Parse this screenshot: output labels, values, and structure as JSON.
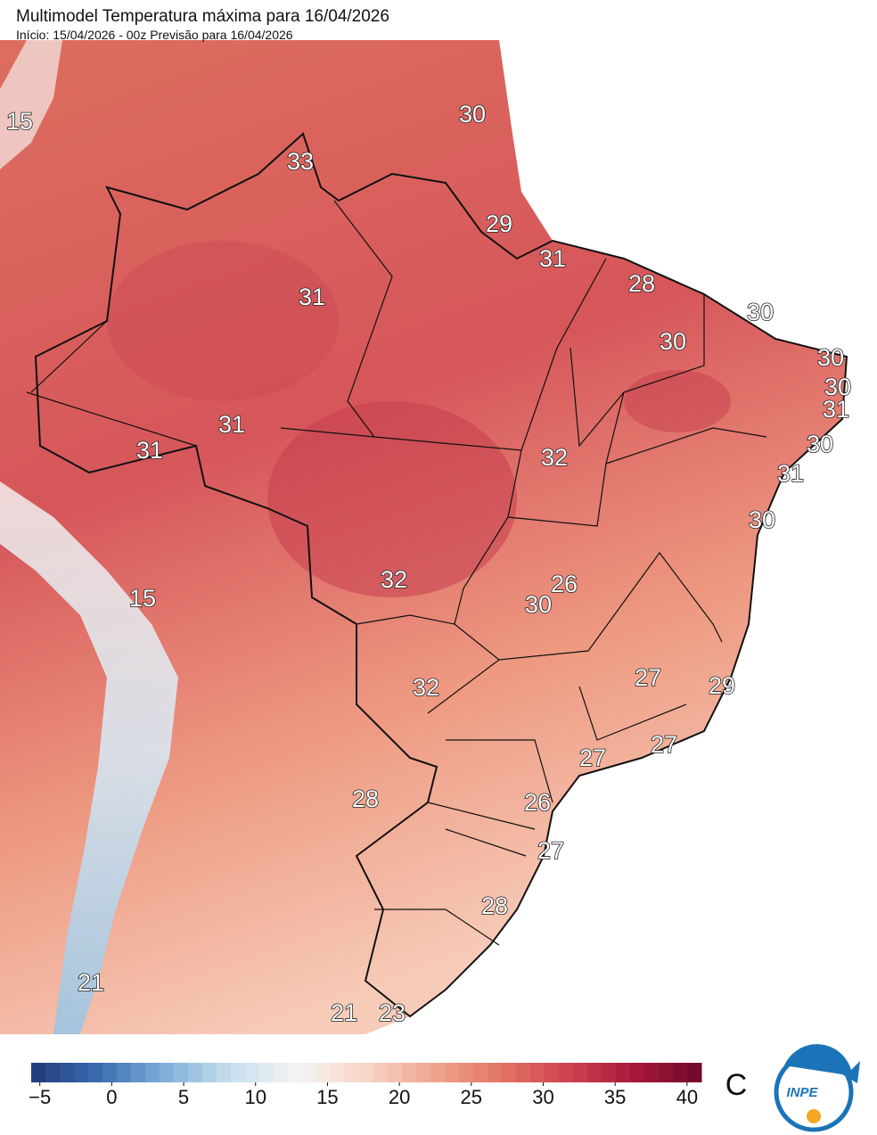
{
  "title": "Multimodel Temperatura máxima para 16/04/2026",
  "subtitle": "Início: 15/04/2026 - 00z  Previsão para 16/04/2026",
  "map_labels": [
    15,
    33,
    30,
    29,
    31,
    28,
    31,
    30,
    30,
    30,
    30,
    31,
    30,
    31,
    31,
    32,
    31,
    30,
    26,
    32,
    30,
    15,
    27,
    32,
    29,
    27,
    27,
    28,
    26,
    27,
    28,
    21,
    21,
    23
  ],
  "colorbar": {
    "lim": [
      -5.6,
      41
    ],
    "ticks": [
      {
        "value": -5,
        "label": "−5"
      },
      0,
      5,
      10,
      15,
      20,
      25,
      30,
      35,
      40
    ],
    "unit": "C",
    "colors": [
      "#1f3a7a",
      "#3a6bb0",
      "#7fb0d8",
      "#c9e0ef",
      "#f5f3f2",
      "#f7d5c8",
      "#f0a58e",
      "#e27565",
      "#cf4350",
      "#a8173a",
      "#6e0a2a"
    ]
  },
  "logo": {
    "text": "INPE"
  }
}
